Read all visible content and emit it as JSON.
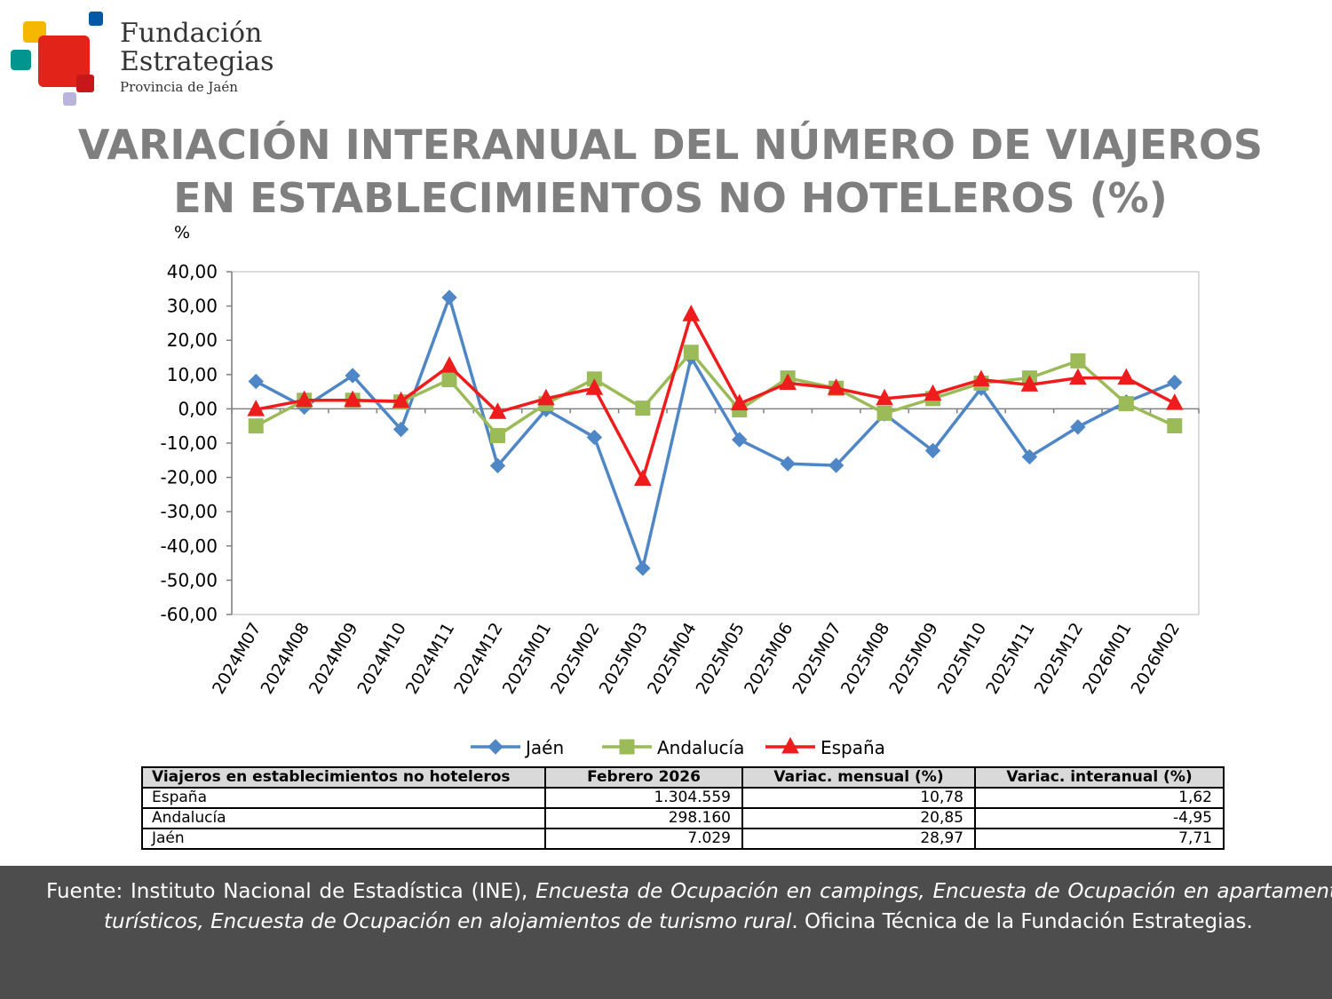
{
  "logo": {
    "line1": "Fundación",
    "line2": "Estrategias",
    "line3": "Provincia de Jaén",
    "colors": [
      "#f5b700",
      "#005aa7",
      "#e2231a",
      "#00968f",
      "#b9b4d9"
    ]
  },
  "title": {
    "line1": "VARIACIÓN INTERANUAL DEL NÚMERO DE VIAJEROS",
    "line2": "EN ESTABLECIMIENTOS NO HOTELEROS (%)"
  },
  "chart_data": {
    "type": "line",
    "ylabel": "%",
    "ylim": [
      -60,
      40
    ],
    "yticks": [
      "40,00",
      "30,00",
      "20,00",
      "10,00",
      "0,00",
      "-10,00",
      "-20,00",
      "-30,00",
      "-40,00",
      "-50,00",
      "-60,00"
    ],
    "categories": [
      "2024M07",
      "2024M08",
      "2024M09",
      "2024M10",
      "2024M11",
      "2024M12",
      "2025M01",
      "2025M02",
      "2025M03",
      "2025M04",
      "2025M05",
      "2025M06",
      "2025M07",
      "2025M08",
      "2025M09",
      "2025M10",
      "2025M11",
      "2025M12",
      "2026M01",
      "2026M02"
    ],
    "series": [
      {
        "name": "Jaén",
        "color": "#4f86c6",
        "marker": "diamond",
        "values": [
          8.0,
          0.5,
          9.7,
          -6.0,
          32.5,
          -16.6,
          -0.2,
          -8.3,
          -46.5,
          15.0,
          -9.0,
          -16.0,
          -16.5,
          -1.5,
          -12.2,
          6.0,
          -14.0,
          -5.3,
          2.0,
          7.71
        ]
      },
      {
        "name": "Andalucía",
        "color": "#9bbb59",
        "marker": "square",
        "values": [
          -5.0,
          2.5,
          2.5,
          2.0,
          8.5,
          -7.8,
          1.5,
          8.7,
          0.2,
          16.5,
          -0.3,
          9.0,
          6.0,
          -1.3,
          3.0,
          7.5,
          9.0,
          14.0,
          1.5,
          -4.95
        ]
      },
      {
        "name": "España",
        "color": "#ee1c1c",
        "marker": "triangle",
        "values": [
          -0.2,
          2.5,
          2.5,
          2.2,
          12.5,
          -1.0,
          3.0,
          6.0,
          -20.5,
          27.5,
          1.5,
          7.5,
          6.0,
          3.0,
          4.3,
          8.5,
          7.0,
          9.0,
          9.0,
          1.62
        ]
      }
    ],
    "legend": "bottom",
    "grid": false
  },
  "table": {
    "headers": [
      "Viajeros en establecimientos no hoteleros",
      "Febrero 2026",
      "Variac. mensual (%)",
      "Variac. interanual (%)"
    ],
    "rows": [
      [
        "España",
        "1.304.559",
        "10,78",
        "1,62"
      ],
      [
        "Andalucía",
        "298.160",
        "20,85",
        "-4,95"
      ],
      [
        "Jaén",
        "7.029",
        "28,97",
        "7,71"
      ]
    ]
  },
  "footer": {
    "lead": "Fuente: Instituto Nacional de Estadística (INE),",
    "italic": "Encuesta de Ocupación en campings, Encuesta de Ocupación en apartamentos turísticos, Encuesta de Ocupación en alojamientos de turismo rural",
    "tail": ". Oficina Técnica de la Fundación Estrategias."
  }
}
